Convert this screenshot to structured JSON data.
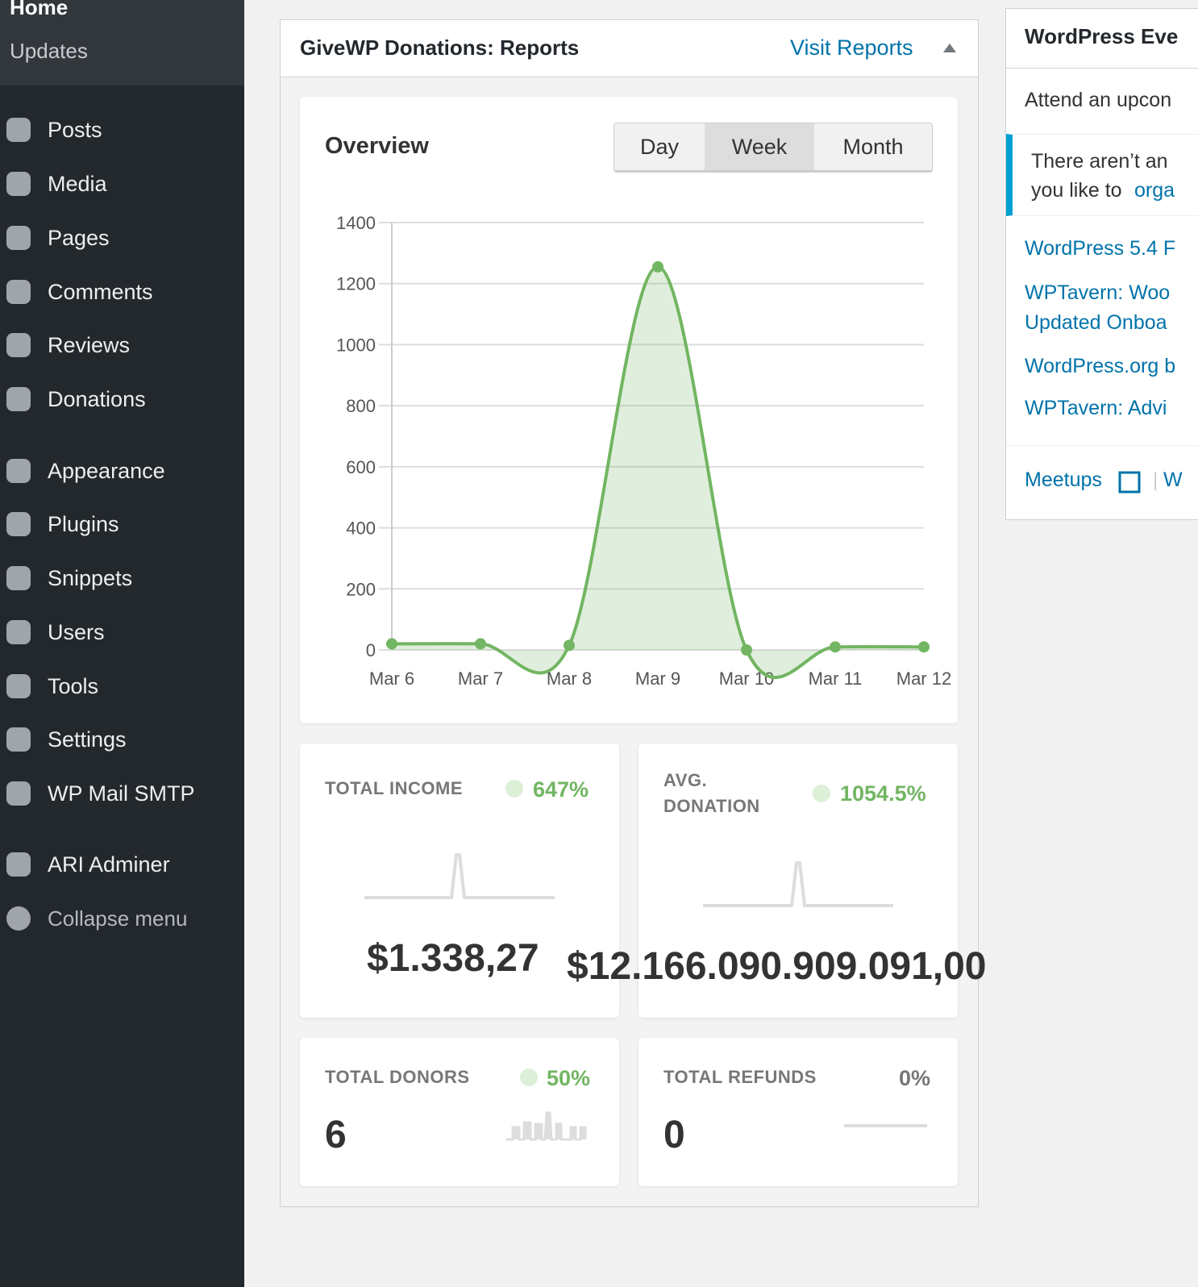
{
  "sidebar": {
    "submenu": [
      "Home",
      "Updates"
    ],
    "menu": [
      "Posts",
      "Media",
      "Pages",
      "Comments",
      "Reviews",
      "Donations",
      "Appearance",
      "Plugins",
      "Snippets",
      "Users",
      "Tools",
      "Settings",
      "WP Mail SMTP",
      "ARI Adminer"
    ],
    "collapse": "Collapse menu"
  },
  "widget": {
    "title": "GiveWP Donations: Reports",
    "link": "Visit Reports"
  },
  "overview": {
    "title": "Overview",
    "periods": [
      "Day",
      "Week",
      "Month"
    ]
  },
  "chart_data": {
    "type": "line",
    "categories": [
      "Mar 6",
      "Mar 7",
      "Mar 8",
      "Mar 9",
      "Mar 10",
      "Mar 11",
      "Mar 12"
    ],
    "values": [
      20,
      20,
      15,
      1255,
      0,
      10,
      10
    ],
    "color": "#72b562",
    "ylim": [
      0,
      1400
    ],
    "yticks": [
      0,
      200,
      400,
      600,
      800,
      1000,
      1200,
      1400
    ],
    "grid": true
  },
  "stats": [
    {
      "label": "TOTAL INCOME",
      "change": "647%",
      "value": "$1.338,27"
    },
    {
      "label": "AVG. DONATION",
      "change": "1054.5%",
      "value": "$12.166.090.909.091,00"
    },
    {
      "label": "TOTAL DONORS",
      "change": "50%",
      "value": "6"
    },
    {
      "label": "TOTAL REFUNDS",
      "change": "0%",
      "value": "0"
    }
  ],
  "events": {
    "title": "WordPress Eve",
    "intro": "Attend an upcon",
    "notice": [
      "There aren’t an",
      "you like to"
    ],
    "notice_link": "orga",
    "news": [
      "WordPress 5.4 F",
      "WPTavern: Woo",
      "Updated Onboa",
      "WordPress.org b",
      "WPTavern: Advi"
    ],
    "footer": [
      "Meetups",
      "W"
    ]
  }
}
